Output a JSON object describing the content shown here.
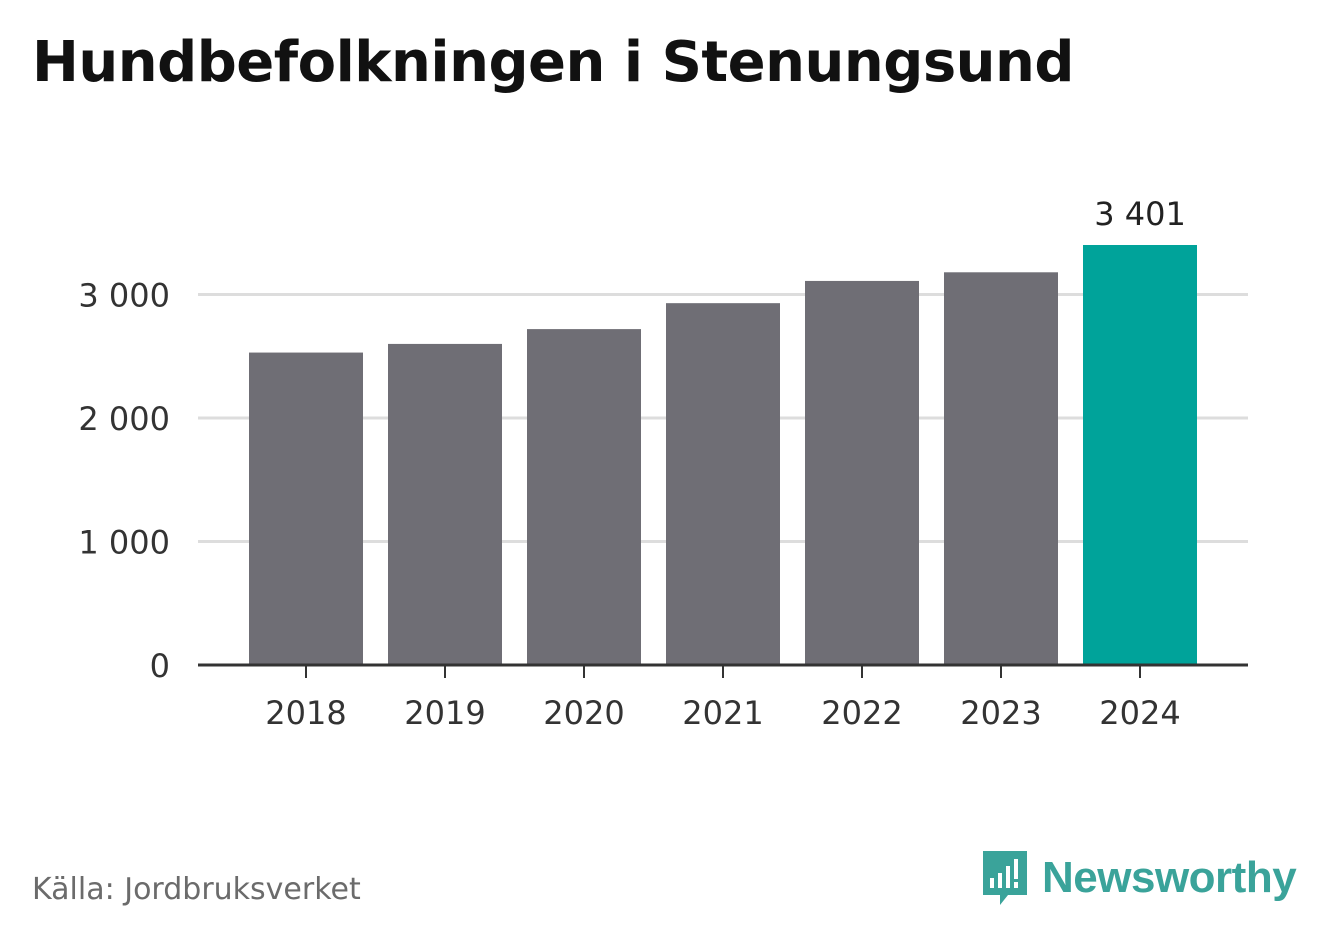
{
  "chart_data": {
    "type": "bar",
    "title": "Hundbefolkningen i Stenungsund",
    "xlabel": "",
    "ylabel": "",
    "categories": [
      "2018",
      "2019",
      "2020",
      "2021",
      "2022",
      "2023",
      "2024"
    ],
    "values": [
      2530,
      2600,
      2720,
      2930,
      3110,
      3180,
      3401
    ],
    "value_labels": [
      "",
      "",
      "",
      "",
      "",
      "",
      "3 401"
    ],
    "ylim": [
      0,
      3401
    ],
    "yticks": [
      0,
      1000,
      2000,
      3000
    ],
    "ytick_labels": [
      "0",
      "1 000",
      "2 000",
      "3 000"
    ],
    "grid": true,
    "legend": "none",
    "colors": {
      "bar": "#6f6e75",
      "highlight": "#00a39a",
      "grid": "#dddddd",
      "axis": "#333333"
    },
    "highlight_index": 6
  },
  "footer": {
    "source": "Källa: Jordbruksverket",
    "brand": "Newsworthy"
  },
  "icons": {
    "brand_icon": "newsworthy-logo-icon"
  }
}
